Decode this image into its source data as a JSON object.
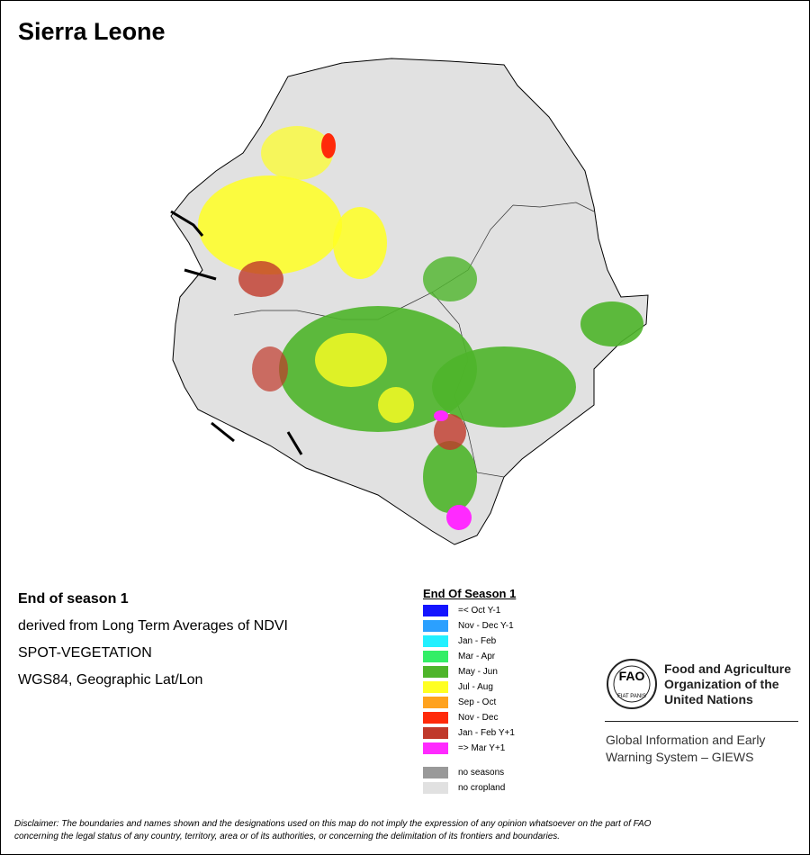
{
  "title": "Sierra Leone",
  "info": {
    "heading": "End of season 1",
    "lines": [
      "derived from Long Term Averages of NDVI",
      "SPOT-VEGETATION",
      "WGS84, Geographic Lat/Lon"
    ]
  },
  "legend": {
    "title": "End Of Season 1",
    "items": [
      {
        "label": "=< Oct Y-1",
        "color": "#1414ff"
      },
      {
        "label": "Nov - Dec Y-1",
        "color": "#2ba0ff"
      },
      {
        "label": "Jan - Feb",
        "color": "#22f0ff"
      },
      {
        "label": "Mar - Apr",
        "color": "#33ee66"
      },
      {
        "label": "May - Jun",
        "color": "#4eb52a"
      },
      {
        "label": "Jul - Aug",
        "color": "#ffff22"
      },
      {
        "label": "Sep - Oct",
        "color": "#ffa21e"
      },
      {
        "label": "Nov - Dec",
        "color": "#ff2a0a"
      },
      {
        "label": "Jan - Feb Y+1",
        "color": "#c0392b"
      },
      {
        "label": "=> Mar Y+1",
        "color": "#ff2aff"
      }
    ],
    "extra": [
      {
        "label": "no seasons",
        "color": "#999999"
      },
      {
        "label": "no cropland",
        "color": "#e1e1e1"
      }
    ]
  },
  "logo": {
    "emblem": "FAO",
    "motto": "FIAT PANIS",
    "org": [
      "Food and Agriculture",
      "Organization of the",
      "United Nations"
    ],
    "system": [
      "Global Information and Early",
      "Warning System – GIEWS"
    ]
  },
  "disclaimer": [
    "Disclaimer: The boundaries and names shown and the designations used on this map do not imply the expression of any opinion whatsoever on the part of FAO",
    "concerning the legal status of any country, territory, area or of its authorities, or concerning the delimitation of its frontiers and boundaries."
  ]
}
